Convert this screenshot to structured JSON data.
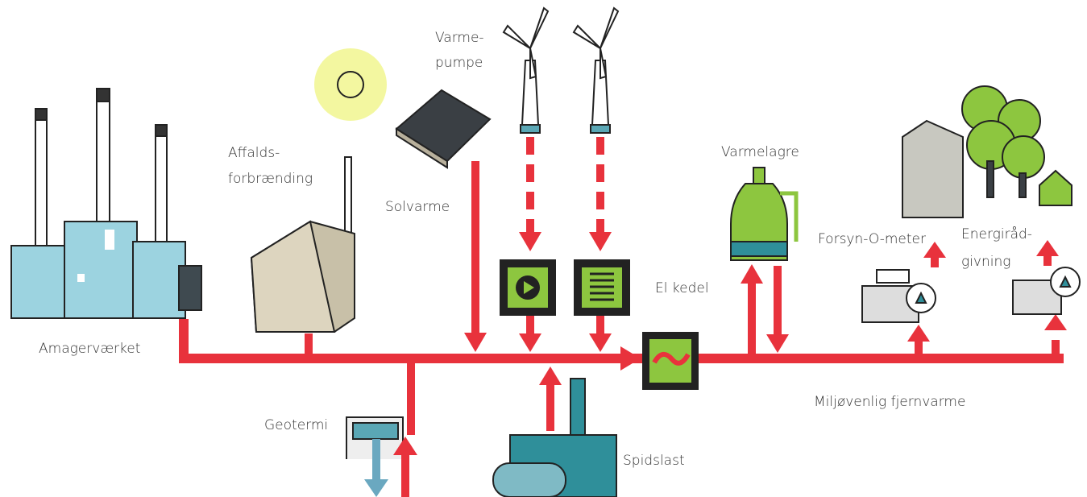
{
  "nodes": [
    {
      "label": [
        "Amagerværket"
      ]
    },
    {
      "label": [
        "Affalds-",
        "forbrænding"
      ]
    },
    {
      "label": [
        "Solvarme"
      ]
    },
    {
      "label": [
        "Varme-",
        "pumpe"
      ]
    },
    {
      "label": [
        "Varmelagre"
      ]
    },
    {
      "label": [
        "El kedel"
      ]
    },
    {
      "label": [
        "Forsyn-O-meter"
      ]
    },
    {
      "label": [
        "Energiråd-",
        "givning"
      ]
    },
    {
      "label": [
        "Geotermi"
      ]
    },
    {
      "label": [
        "Spidslast"
      ]
    },
    {
      "label": [
        "Miljøvenlig fjernvarme"
      ]
    }
  ]
}
